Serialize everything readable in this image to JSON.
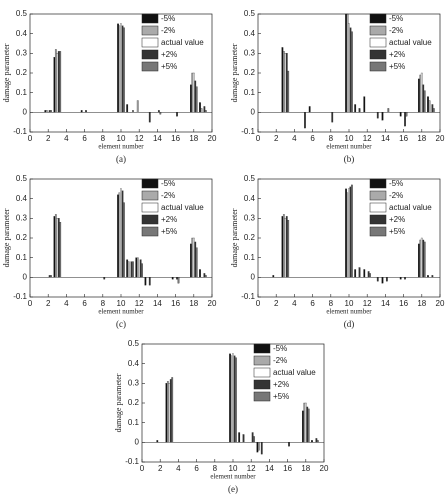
{
  "chart_data": [
    {
      "type": "bar",
      "caption": "(a)",
      "xlabel": "element number",
      "ylabel": "damage parameter",
      "x": [
        2,
        3,
        6,
        10,
        11,
        12,
        13,
        14,
        16,
        18,
        19
      ],
      "series": [
        {
          "name": "-5%",
          "color": "#111111",
          "values": [
            0.01,
            0.28,
            0.01,
            0.45,
            0.04,
            0,
            0,
            0,
            0,
            0.14,
            0.05
          ]
        },
        {
          "name": "-2%",
          "color": "#aaaaaa",
          "values": [
            0.01,
            0.32,
            0,
            0.44,
            0,
            0.06,
            0,
            0,
            0,
            0.2,
            0.02
          ]
        },
        {
          "name": "actual value",
          "color": "#ffffff",
          "values": [
            0,
            0.3,
            0,
            0.45,
            0,
            0,
            0,
            0,
            0,
            0.2,
            0
          ]
        },
        {
          "name": "+2%",
          "color": "#333333",
          "values": [
            0.01,
            0.31,
            0.01,
            0.44,
            0,
            0,
            -0.05,
            0.01,
            -0.02,
            0.16,
            0.03
          ]
        },
        {
          "name": "+5%",
          "color": "#777777",
          "values": [
            0.01,
            0.31,
            0,
            0.43,
            0.01,
            0,
            0,
            -0.01,
            0,
            0.13,
            0.01
          ]
        }
      ],
      "xlim": [
        0,
        20
      ],
      "ylim": [
        -0.1,
        0.5
      ],
      "xticks": [
        0,
        2,
        4,
        6,
        8,
        10,
        12,
        14,
        16,
        18,
        20
      ],
      "yticks": [
        -0.1,
        0,
        0.1,
        0.2,
        0.3,
        0.4,
        0.5
      ]
    },
    {
      "type": "bar",
      "caption": "(b)",
      "xlabel": "element number",
      "ylabel": "damage parameter",
      "x": [
        2,
        3,
        5,
        6,
        8,
        10,
        11,
        12,
        13,
        14,
        16,
        18,
        19
      ],
      "series": [
        {
          "name": "-5%",
          "color": "#111111",
          "values": [
            0,
            0.33,
            0,
            0.03,
            0,
            0.5,
            0.04,
            0.08,
            0,
            -0.04,
            -0.02,
            0.17,
            0.08
          ]
        },
        {
          "name": "-2%",
          "color": "#aaaaaa",
          "values": [
            0,
            0.31,
            0,
            0,
            0,
            0.5,
            0,
            0,
            0,
            0,
            0,
            0.19,
            0.06
          ]
        },
        {
          "name": "actual value",
          "color": "#ffffff",
          "values": [
            0,
            0.3,
            0,
            0,
            0,
            0.45,
            0,
            0,
            0,
            0,
            0,
            0.2,
            0
          ]
        },
        {
          "name": "+2%",
          "color": "#333333",
          "values": [
            0,
            0.3,
            -0.08,
            0,
            -0.05,
            0.43,
            0.02,
            0,
            -0.03,
            0,
            -0.07,
            0.14,
            0.04
          ]
        },
        {
          "name": "+5%",
          "color": "#777777",
          "values": [
            0,
            0.21,
            0,
            0,
            0,
            0.41,
            0,
            0,
            0,
            0.02,
            -0.02,
            0.11,
            0.02
          ]
        }
      ],
      "xlim": [
        0,
        20
      ],
      "ylim": [
        -0.1,
        0.5
      ],
      "xticks": [
        0,
        2,
        4,
        6,
        8,
        10,
        12,
        14,
        16,
        18,
        20
      ],
      "yticks": [
        -0.1,
        0,
        0.1,
        0.2,
        0.3,
        0.4,
        0.5
      ]
    },
    {
      "type": "bar",
      "caption": "(c)",
      "xlabel": "element number",
      "ylabel": "damage parameter",
      "x": [
        2,
        3,
        8,
        10,
        11,
        12,
        13,
        16,
        17,
        18,
        19
      ],
      "series": [
        {
          "name": "-5%",
          "color": "#111111",
          "values": [
            0,
            0.31,
            0,
            0.42,
            0.09,
            0.1,
            -0.04,
            -0.01,
            0,
            0.17,
            0.04
          ]
        },
        {
          "name": "-2%",
          "color": "#aaaaaa",
          "values": [
            0,
            0.32,
            0,
            0.43,
            0.08,
            0.1,
            0,
            0,
            0,
            0.2,
            0
          ]
        },
        {
          "name": "actual value",
          "color": "#ffffff",
          "values": [
            0,
            0.3,
            0,
            0.45,
            0,
            0,
            0,
            0,
            0,
            0.2,
            0
          ]
        },
        {
          "name": "+2%",
          "color": "#333333",
          "values": [
            0.01,
            0.3,
            -0.01,
            0.44,
            0.08,
            0.09,
            -0.04,
            -0.01,
            0,
            0.18,
            0.02
          ]
        },
        {
          "name": "+5%",
          "color": "#777777",
          "values": [
            0.01,
            0.28,
            0,
            0.38,
            0.08,
            0.07,
            0,
            -0.03,
            0,
            0.15,
            0.01
          ]
        }
      ],
      "xlim": [
        0,
        20
      ],
      "ylim": [
        -0.1,
        0.5
      ],
      "xticks": [
        0,
        2,
        4,
        6,
        8,
        10,
        12,
        14,
        16,
        18,
        20
      ],
      "yticks": [
        -0.1,
        0,
        0.1,
        0.2,
        0.3,
        0.4,
        0.5
      ]
    },
    {
      "type": "bar",
      "caption": "(d)",
      "xlabel": "element number",
      "ylabel": "damage parameter",
      "x": [
        2,
        3,
        10,
        11,
        12,
        13,
        14,
        16,
        18,
        19
      ],
      "series": [
        {
          "name": "-5%",
          "color": "#111111",
          "values": [
            0.01,
            0.31,
            0.45,
            0.04,
            0.04,
            0,
            -0.03,
            -0.01,
            0.17,
            0.01
          ]
        },
        {
          "name": "-2%",
          "color": "#aaaaaa",
          "values": [
            0,
            0.32,
            0.43,
            0,
            0,
            0,
            0,
            0,
            0.19,
            0
          ]
        },
        {
          "name": "actual value",
          "color": "#ffffff",
          "values": [
            0,
            0.3,
            0.45,
            0,
            0,
            0,
            0,
            0,
            0.2,
            0
          ]
        },
        {
          "name": "+2%",
          "color": "#333333",
          "values": [
            0,
            0.31,
            0.46,
            0.05,
            0.03,
            -0.02,
            -0.02,
            -0.01,
            0.19,
            0.01
          ]
        },
        {
          "name": "+5%",
          "color": "#777777",
          "values": [
            0,
            0.29,
            0.47,
            0,
            0.02,
            0,
            0,
            0,
            0.18,
            0
          ]
        }
      ],
      "xlim": [
        0,
        20
      ],
      "ylim": [
        -0.1,
        0.5
      ],
      "xticks": [
        0,
        2,
        4,
        6,
        8,
        10,
        12,
        14,
        16,
        18,
        20
      ],
      "yticks": [
        -0.1,
        0,
        0.1,
        0.2,
        0.3,
        0.4,
        0.5
      ]
    },
    {
      "type": "bar",
      "caption": "(e)",
      "xlabel": "element number",
      "ylabel": "damage parameter",
      "x": [
        2,
        3,
        10,
        11,
        12,
        13,
        16,
        18,
        19
      ],
      "series": [
        {
          "name": "-5%",
          "color": "#111111",
          "values": [
            0.01,
            0.3,
            0.45,
            0.05,
            0,
            -0.05,
            0,
            0.16,
            0.01
          ]
        },
        {
          "name": "-2%",
          "color": "#aaaaaa",
          "values": [
            0,
            0.31,
            0.44,
            0,
            0,
            -0.04,
            0,
            0.2,
            0
          ]
        },
        {
          "name": "actual value",
          "color": "#ffffff",
          "values": [
            0,
            0.3,
            0.45,
            0,
            0,
            0,
            0,
            0.2,
            0
          ]
        },
        {
          "name": "+2%",
          "color": "#333333",
          "values": [
            0,
            0.32,
            0.44,
            0.04,
            0.05,
            -0.06,
            -0.02,
            0.18,
            0.02
          ]
        },
        {
          "name": "+5%",
          "color": "#777777",
          "values": [
            0,
            0.33,
            0.43,
            0,
            0.03,
            0,
            0,
            0.17,
            0.01
          ]
        }
      ],
      "xlim": [
        0,
        20
      ],
      "ylim": [
        -0.1,
        0.5
      ],
      "xticks": [
        0,
        2,
        4,
        6,
        8,
        10,
        12,
        14,
        16,
        18,
        20
      ],
      "yticks": [
        -0.1,
        0,
        0.1,
        0.2,
        0.3,
        0.4,
        0.5
      ]
    }
  ]
}
